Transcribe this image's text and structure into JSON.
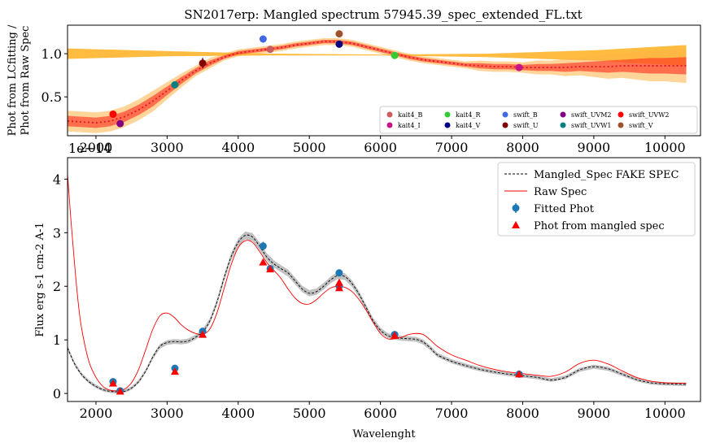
{
  "title": "SN2017erp: Mangled spectrum 57945.39_spec_extended_FL.txt",
  "chart_data": [
    {
      "type": "scatter",
      "panel": "top",
      "title": "SN2017erp: Mangled spectrum 57945.39_spec_extended_FL.txt",
      "xlabel": "",
      "ylabel_lines": [
        "Phot from LCfitting /",
        "Phot from Raw Spec"
      ],
      "xlim": [
        1600,
        10500
      ],
      "ylim": [
        0.05,
        1.33
      ],
      "x_ticks": [
        2000,
        3000,
        4000,
        5000,
        6000,
        7000,
        8000,
        9000,
        10000
      ],
      "x_tick_labels": [
        "2000",
        "3000",
        "4000",
        "5000",
        "6000",
        "7000",
        "8000",
        "9000",
        "10000"
      ],
      "offset_label": "1e−14",
      "y_ticks": [
        0.5,
        1.0
      ],
      "y_tick_labels": [
        "0.5",
        "1.0"
      ],
      "ratio_curve": {
        "x": [
          1600,
          1800,
          2000,
          2200,
          2400,
          2600,
          2800,
          3000,
          3200,
          3400,
          3600,
          3800,
          4000,
          4200,
          4400,
          4600,
          4800,
          5000,
          5200,
          5400,
          5600,
          5800,
          6000,
          6200,
          6400,
          6600,
          6800,
          7000,
          7200,
          7400,
          7600,
          7800,
          8000,
          8200,
          8400,
          8600,
          8800,
          9000,
          9200,
          9400,
          9600,
          9800,
          10000,
          10300
        ],
        "y": [
          0.22,
          0.21,
          0.2,
          0.22,
          0.27,
          0.35,
          0.45,
          0.57,
          0.69,
          0.8,
          0.89,
          0.96,
          1.01,
          1.03,
          1.05,
          1.07,
          1.1,
          1.12,
          1.14,
          1.14,
          1.12,
          1.08,
          1.04,
          1.0,
          0.96,
          0.93,
          0.91,
          0.89,
          0.87,
          0.86,
          0.85,
          0.85,
          0.84,
          0.84,
          0.84,
          0.84,
          0.85,
          0.85,
          0.85,
          0.86,
          0.86,
          0.86,
          0.86,
          0.86
        ],
        "band_halfwidth": [
          0.06,
          0.06,
          0.06,
          0.06,
          0.06,
          0.06,
          0.06,
          0.05,
          0.04,
          0.03,
          0.03,
          0.02,
          0.02,
          0.02,
          0.02,
          0.02,
          0.02,
          0.02,
          0.02,
          0.02,
          0.02,
          0.02,
          0.02,
          0.02,
          0.02,
          0.02,
          0.02,
          0.02,
          0.02,
          0.03,
          0.03,
          0.03,
          0.03,
          0.04,
          0.04,
          0.05,
          0.05,
          0.06,
          0.07,
          0.07,
          0.08,
          0.09,
          0.09,
          0.1
        ],
        "color": "#ff2a1a"
      },
      "flat_band": {
        "x": [
          1600,
          3000,
          4500,
          6000,
          7500,
          9000,
          10300
        ],
        "y_top": [
          1.06,
          1.03,
          1.0,
          0.99,
          1.0,
          1.04,
          1.1
        ],
        "y_bottom": [
          0.94,
          0.97,
          0.98,
          0.98,
          0.96,
          0.92,
          0.86
        ],
        "color": "#ffa500"
      },
      "series": [
        {
          "name": "kait4_B",
          "x": 4450,
          "y": 1.05,
          "yerr": 0.01,
          "color": "#cd5c5c"
        },
        {
          "name": "kait4_I",
          "x": 7950,
          "y": 0.84,
          "yerr": 0.01,
          "color": "#c71585"
        },
        {
          "name": "kait4_R",
          "x": 6200,
          "y": 0.98,
          "yerr": 0.01,
          "color": "#32cd32"
        },
        {
          "name": "kait4_V",
          "x": 5420,
          "y": 1.11,
          "yerr": 0.015,
          "color": "#000080"
        },
        {
          "name": "swift_B",
          "x": 4350,
          "y": 1.17,
          "yerr": 0.04,
          "color": "#4169e1"
        },
        {
          "name": "swift_U",
          "x": 3500,
          "y": 0.89,
          "yerr": 0.06,
          "color": "#800000"
        },
        {
          "name": "swift_UVM2",
          "x": 2340,
          "y": 0.19,
          "yerr": 0.01,
          "color": "#800080"
        },
        {
          "name": "swift_UVW1",
          "x": 3110,
          "y": 0.64,
          "yerr": 0.04,
          "color": "#008080"
        },
        {
          "name": "swift_UVW2",
          "x": 2240,
          "y": 0.3,
          "yerr": 0.01,
          "color": "#ff0000"
        },
        {
          "name": "swift_V",
          "x": 5420,
          "y": 1.23,
          "yerr": 0.015,
          "color": "#a0522d"
        }
      ],
      "legend": {
        "placement": "lower-right",
        "columns": [
          [
            "kait4_B",
            "kait4_I"
          ],
          [
            "kait4_R",
            "kait4_V"
          ],
          [
            "swift_B",
            "swift_U"
          ],
          [
            "swift_UVM2",
            "swift_UVW1"
          ],
          [
            "swift_UVW2",
            "swift_V"
          ]
        ]
      }
    },
    {
      "type": "line",
      "panel": "bottom",
      "xlabel": "Wavelenght",
      "ylabel": "Flux erg s-1 cm-2 A-1",
      "xlim": [
        1600,
        10500
      ],
      "ylim": [
        -0.15,
        4.4
      ],
      "x_ticks": [
        2000,
        3000,
        4000,
        5000,
        6000,
        7000,
        8000,
        9000,
        10000
      ],
      "x_tick_labels": [
        "2000",
        "3000",
        "4000",
        "5000",
        "6000",
        "7000",
        "8000",
        "9000",
        "10000"
      ],
      "y_ticks": [
        0,
        1,
        2,
        3,
        4
      ],
      "y_tick_labels": [
        "0",
        "1",
        "2",
        "3",
        "4"
      ],
      "series": [
        {
          "name": "Mangled_Spec FAKE SPEC",
          "style": "dashed",
          "color": "#000000",
          "band_color": "#b0b0b0",
          "x": [
            1600,
            1700,
            1800,
            1900,
            2000,
            2100,
            2200,
            2300,
            2400,
            2500,
            2600,
            2700,
            2800,
            2900,
            3000,
            3100,
            3200,
            3300,
            3400,
            3500,
            3600,
            3700,
            3800,
            3900,
            4000,
            4100,
            4200,
            4300,
            4400,
            4500,
            4600,
            4700,
            4800,
            4900,
            5000,
            5100,
            5200,
            5300,
            5400,
            5500,
            5600,
            5700,
            5800,
            5900,
            6000,
            6100,
            6200,
            6300,
            6400,
            6500,
            6600,
            6700,
            6800,
            7000,
            7200,
            7400,
            7600,
            7800,
            8000,
            8200,
            8400,
            8600,
            8800,
            9000,
            9200,
            9400,
            9600,
            9800,
            10000,
            10300
          ],
          "y": [
            0.85,
            0.55,
            0.35,
            0.22,
            0.13,
            0.07,
            0.04,
            0.03,
            0.04,
            0.1,
            0.22,
            0.42,
            0.68,
            0.88,
            0.95,
            0.97,
            0.96,
            0.98,
            1.05,
            1.15,
            1.35,
            1.7,
            2.15,
            2.55,
            2.82,
            2.95,
            2.92,
            2.75,
            2.55,
            2.42,
            2.33,
            2.25,
            2.1,
            1.95,
            1.87,
            1.9,
            2.0,
            2.12,
            2.2,
            2.18,
            2.05,
            1.85,
            1.6,
            1.35,
            1.18,
            1.08,
            1.05,
            1.03,
            1.02,
            1.01,
            0.96,
            0.85,
            0.72,
            0.6,
            0.52,
            0.45,
            0.4,
            0.36,
            0.33,
            0.3,
            0.25,
            0.3,
            0.44,
            0.5,
            0.46,
            0.36,
            0.26,
            0.2,
            0.18,
            0.17
          ]
        },
        {
          "name": "Raw Spec",
          "style": "solid",
          "color": "#ff0000",
          "x": [
            1600,
            1650,
            1700,
            1750,
            1800,
            1900,
            2000,
            2100,
            2200,
            2300,
            2400,
            2500,
            2600,
            2700,
            2800,
            2900,
            3000,
            3100,
            3200,
            3300,
            3400,
            3500,
            3600,
            3700,
            3800,
            3900,
            4000,
            4100,
            4200,
            4300,
            4400,
            4500,
            4600,
            4700,
            4800,
            4900,
            5000,
            5100,
            5200,
            5300,
            5400,
            5500,
            5600,
            5700,
            5800,
            5900,
            6000,
            6100,
            6200,
            6300,
            6400,
            6500,
            6600,
            6700,
            6800,
            7000,
            7200,
            7400,
            7600,
            7800,
            8000,
            8200,
            8400,
            8600,
            8800,
            9000,
            9200,
            9400,
            9600,
            9800,
            10000,
            10300
          ],
          "y": [
            4.1,
            3.2,
            2.4,
            1.7,
            1.2,
            0.6,
            0.3,
            0.13,
            0.06,
            0.05,
            0.08,
            0.2,
            0.45,
            0.82,
            1.2,
            1.45,
            1.5,
            1.42,
            1.28,
            1.18,
            1.12,
            1.1,
            1.2,
            1.5,
            1.95,
            2.4,
            2.72,
            2.85,
            2.82,
            2.65,
            2.45,
            2.3,
            2.15,
            1.95,
            1.78,
            1.68,
            1.67,
            1.75,
            1.87,
            1.97,
            2.0,
            1.98,
            1.9,
            1.75,
            1.55,
            1.32,
            1.12,
            1.02,
            1.02,
            1.05,
            1.1,
            1.12,
            1.1,
            1.0,
            0.88,
            0.72,
            0.62,
            0.52,
            0.45,
            0.4,
            0.37,
            0.34,
            0.32,
            0.4,
            0.56,
            0.62,
            0.55,
            0.42,
            0.3,
            0.23,
            0.2,
            0.19
          ]
        },
        {
          "name": "Fitted Phot",
          "style": "errorbar",
          "color": "#1f77b4",
          "x": [
            2240,
            2340,
            3110,
            3500,
            4350,
            4450,
            5420,
            5420,
            6200,
            7950
          ],
          "y": [
            0.22,
            0.05,
            0.47,
            1.16,
            2.75,
            2.33,
            2.25,
            2.0,
            1.1,
            0.36
          ],
          "yerr": [
            0.03,
            0.02,
            0.04,
            0.06,
            0.08,
            0.03,
            0.05,
            0.04,
            0.04,
            0.02
          ]
        },
        {
          "name": "Phot from mangled spec",
          "style": "triangles",
          "color": "#ff0000",
          "x": [
            2240,
            2340,
            3110,
            3500,
            4350,
            4450,
            5420,
            5420,
            6200,
            7950
          ],
          "y": [
            0.19,
            0.04,
            0.41,
            1.1,
            2.45,
            2.32,
            1.97,
            2.07,
            1.08,
            0.36
          ]
        }
      ],
      "legend": {
        "placement": "upper-right",
        "entries": [
          "Mangled_Spec FAKE SPEC",
          "Raw Spec",
          "Fitted Phot",
          "Phot from mangled spec"
        ]
      }
    }
  ]
}
